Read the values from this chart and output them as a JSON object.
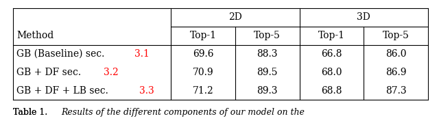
{
  "col_headers_row1": [
    "2D",
    "3D"
  ],
  "col_headers_row2": [
    "Method",
    "Top-1",
    "Top-5",
    "Top-1",
    "Top-5"
  ],
  "rows": [
    {
      "label": "GB (Baseline) sec. ",
      "red": "3.1",
      "vals": [
        "69.6",
        "88.3",
        "66.8",
        "86.0"
      ]
    },
    {
      "label": "GB + DF sec. ",
      "red": "3.2",
      "vals": [
        "70.9",
        "89.5",
        "68.0",
        "86.9"
      ]
    },
    {
      "label": "GB + DF + LB sec. ",
      "red": "3.3",
      "vals": [
        "71.2",
        "89.3",
        "68.8",
        "87.3"
      ]
    }
  ],
  "caption_prefix": "Table 1. ",
  "caption_italic": "Results of the different components of our model on the",
  "red_color": "#FF0000",
  "black_color": "#000000",
  "bg_color": "#FFFFFF",
  "figsize": [
    6.4,
    1.83
  ],
  "dpi": 100,
  "font_size": 10,
  "caption_font_size": 9
}
